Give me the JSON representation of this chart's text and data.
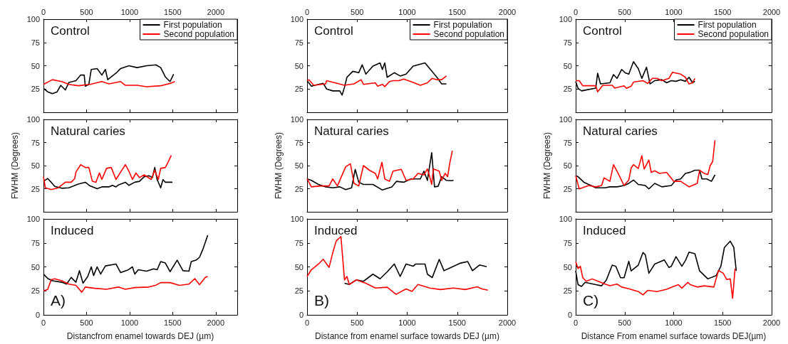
{
  "chart_data": [
    {
      "type": "line",
      "title": "Control",
      "xlim": [
        0,
        2250
      ],
      "xticks": [
        0,
        500,
        1000,
        1500,
        2000
      ],
      "ylim": [
        0,
        100
      ],
      "yticks": [
        25,
        50,
        75,
        100
      ],
      "legend": "top right",
      "series": [
        {
          "name": "First population",
          "color": "#000000",
          "x": [
            0,
            49,
            104,
            159,
            200,
            254,
            295,
            377,
            432,
            473,
            486,
            527,
            555,
            623,
            678,
            719,
            746,
            787,
            842,
            896,
            992,
            1087,
            1197,
            1306,
            1361,
            1415,
            1470,
            1511
          ],
          "values": [
            25.6,
            22,
            20,
            22,
            29,
            24,
            32,
            34,
            40,
            40,
            28,
            30,
            46,
            47,
            40,
            46,
            35,
            38,
            42,
            47,
            50,
            48,
            50,
            51,
            48,
            38,
            33,
            41
          ]
        },
        {
          "name": "Second population",
          "color": "#ff0000",
          "x": [
            0,
            104,
            213,
            295,
            404,
            541,
            678,
            760,
            896,
            951,
            1087,
            1197,
            1361,
            1470,
            1525
          ],
          "values": [
            30,
            35,
            33,
            30,
            28.5,
            30,
            33,
            30.5,
            33,
            29,
            29,
            27.5,
            28.5,
            31,
            33
          ]
        }
      ]
    },
    {
      "type": "line",
      "title": "Control",
      "xlim": [
        0,
        2000
      ],
      "xticks": [
        0,
        500,
        1000,
        1500,
        2000
      ],
      "ylim": [
        0,
        100
      ],
      "yticks": [
        25,
        50,
        75,
        100
      ],
      "legend": "top right",
      "series": [
        {
          "name": "First population",
          "color": "#000000",
          "x": [
            0,
            43,
            114,
            161,
            196,
            256,
            327,
            350,
            374,
            398,
            457,
            516,
            551,
            587,
            658,
            729,
            752,
            776,
            800,
            871,
            930,
            989,
            1060,
            1178,
            1225,
            1297,
            1344,
            1392
          ],
          "values": [
            34,
            28,
            30,
            31,
            25,
            23,
            23,
            18.5,
            27,
            37.6,
            44,
            42.5,
            51,
            41,
            49.6,
            53,
            46,
            53,
            37.6,
            42.5,
            39,
            41,
            49.6,
            53,
            47,
            37.6,
            30.5,
            30.5
          ]
        },
        {
          "name": "Second population",
          "color": "#ff0000",
          "x": [
            0,
            19,
            66,
            185,
            196,
            279,
            374,
            469,
            540,
            563,
            682,
            705,
            752,
            776,
            823,
            859,
            918,
            965,
            1037,
            1131,
            1202,
            1250,
            1297,
            1344,
            1392
          ],
          "values": [
            34,
            35,
            29,
            30.5,
            34,
            31.7,
            29,
            30.5,
            35,
            30,
            31.7,
            28,
            30,
            27.6,
            33,
            34,
            34,
            35.7,
            33,
            29,
            31.7,
            36.5,
            35,
            35,
            39
          ]
        }
      ]
    },
    {
      "type": "line",
      "title": "Control",
      "xlim": [
        0,
        2000
      ],
      "xticks": [
        0,
        500,
        1000,
        1500,
        2000
      ],
      "ylim": [
        0,
        100
      ],
      "yticks": [
        25,
        50,
        75,
        100
      ],
      "legend": "top right",
      "series": [
        {
          "name": "First population",
          "color": "#000000",
          "x": [
            0,
            24,
            60,
            133,
            205,
            224,
            253,
            349,
            386,
            422,
            470,
            506,
            542,
            590,
            639,
            675,
            723,
            759,
            807,
            880,
            928,
            976,
            1024,
            1072,
            1120,
            1157,
            1193,
            1217
          ],
          "values": [
            33,
            25.7,
            23,
            24.5,
            26,
            42,
            30.5,
            31.7,
            40.5,
            36.4,
            46,
            42.4,
            41,
            54.4,
            47,
            36.4,
            48.4,
            30.5,
            34,
            35,
            31.7,
            34,
            33.3,
            35,
            33.3,
            37.6,
            31.7,
            33.3
          ]
        },
        {
          "name": "Second population",
          "color": "#ff0000",
          "x": [
            0,
            36,
            72,
            205,
            224,
            277,
            373,
            398,
            494,
            518,
            566,
            590,
            687,
            735,
            783,
            831,
            880,
            952,
            988,
            1072,
            1120,
            1157,
            1193,
            1217
          ],
          "values": [
            34,
            34,
            28.5,
            28.5,
            22,
            29,
            29,
            26,
            28.5,
            25.7,
            28,
            32.4,
            34,
            31,
            36.4,
            36.4,
            34,
            36.4,
            43,
            41,
            37.6,
            30.5,
            31.7,
            36.4
          ]
        }
      ]
    },
    {
      "type": "line",
      "title": "Natural caries",
      "ylabel": "FWHM (Degrees)",
      "xlim": [
        0,
        2250
      ],
      "xticks": [
        0,
        500,
        1000,
        1500,
        2000
      ],
      "ylim": [
        0,
        100
      ],
      "yticks": [
        25,
        50,
        75,
        100
      ],
      "tick_labels": "y",
      "series": [
        {
          "color": "#000000",
          "x": [
            0,
            49,
            90,
            131,
            213,
            295,
            404,
            486,
            541,
            623,
            678,
            760,
            801,
            842,
            869,
            951,
            992,
            1060,
            1115,
            1169,
            1224,
            1265,
            1292,
            1320,
            1361,
            1388,
            1415,
            1497
          ],
          "values": [
            33,
            36,
            32,
            27.5,
            25.5,
            26,
            30,
            32,
            28,
            25,
            27,
            27,
            28.6,
            27,
            29,
            32,
            28.6,
            32,
            33,
            38,
            39,
            37,
            48,
            35,
            26,
            35,
            32,
            32
          ]
        },
        {
          "color": "#ff0000",
          "x": [
            0,
            22,
            90,
            172,
            254,
            322,
            363,
            377,
            432,
            486,
            527,
            568,
            609,
            650,
            678,
            732,
            787,
            842,
            896,
            951,
            992,
            1033,
            1074,
            1115,
            1169,
            1251,
            1292,
            1333,
            1361,
            1415,
            1443,
            1484
          ],
          "values": [
            38,
            26,
            24,
            26,
            32,
            32,
            36,
            43,
            51,
            48,
            48,
            33,
            32,
            42,
            35,
            47,
            48,
            35,
            43,
            51,
            44,
            35,
            42,
            37,
            40,
            35,
            45,
            35,
            47,
            48,
            53,
            61
          ]
        }
      ]
    },
    {
      "type": "line",
      "title": "Natural caries",
      "ylabel": "FWHM (Degrees)",
      "xlim": [
        0,
        2000
      ],
      "xticks": [
        0,
        500,
        1000,
        1500,
        2000
      ],
      "ylim": [
        0,
        100
      ],
      "yticks": [
        25,
        50,
        75,
        100
      ],
      "tick_labels": "y",
      "series": [
        {
          "color": "#000000",
          "x": [
            0,
            43,
            114,
            185,
            256,
            327,
            386,
            445,
            481,
            516,
            563,
            658,
            752,
            847,
            894,
            965,
            1037,
            1131,
            1167,
            1202,
            1245,
            1273,
            1309,
            1344,
            1392,
            1439,
            1463
          ],
          "values": [
            35.6,
            34,
            29.6,
            27,
            26,
            27,
            24,
            26,
            46,
            32,
            29.6,
            29.6,
            23.6,
            27,
            33,
            32,
            35.6,
            35.6,
            44,
            34,
            64,
            27,
            27.6,
            38,
            34,
            33.6,
            34
          ]
        },
        {
          "color": "#ff0000",
          "x": [
            0,
            43,
            137,
            220,
            256,
            303,
            338,
            386,
            433,
            469,
            516,
            563,
            623,
            682,
            705,
            748,
            776,
            823,
            859,
            941,
            989,
            1060,
            1108,
            1167,
            1202,
            1225,
            1245,
            1262,
            1320,
            1344,
            1380,
            1404,
            1427,
            1451
          ],
          "values": [
            35.6,
            27,
            28,
            28,
            35.6,
            28,
            36.8,
            48.8,
            52,
            30.8,
            28,
            50,
            45,
            41.6,
            35.6,
            53.6,
            35.6,
            33,
            44,
            46,
            34,
            35.6,
            41.6,
            40,
            46.4,
            38,
            29.6,
            46.4,
            44,
            34,
            41.6,
            38,
            53.6,
            66
          ]
        }
      ]
    },
    {
      "type": "line",
      "title": "Natural caries",
      "ylabel": "FWHM (Degrees)",
      "xlim": [
        0,
        2000
      ],
      "xticks": [
        0,
        500,
        1000,
        1500,
        2000
      ],
      "ylim": [
        0,
        100
      ],
      "yticks": [
        25,
        50,
        75,
        100
      ],
      "tick_labels": "y",
      "series": [
        {
          "color": "#000000",
          "x": [
            0,
            24,
            84,
            157,
            205,
            301,
            349,
            422,
            494,
            542,
            590,
            639,
            711,
            747,
            807,
            880,
            976,
            1024,
            1072,
            1120,
            1169,
            1217,
            1265,
            1289,
            1337,
            1386,
            1422
          ],
          "values": [
            39,
            38,
            32,
            28.4,
            26,
            26,
            27,
            27,
            28.4,
            30.8,
            34.4,
            29.6,
            28.4,
            24.8,
            30.8,
            27,
            28.4,
            34.4,
            35.6,
            41.6,
            42.8,
            45,
            45,
            35.6,
            35.6,
            33,
            40
          ]
        },
        {
          "color": "#ff0000",
          "x": [
            0,
            36,
            133,
            205,
            265,
            289,
            349,
            386,
            434,
            494,
            542,
            566,
            590,
            639,
            675,
            699,
            747,
            771,
            807,
            855,
            928,
            1000,
            1072,
            1157,
            1241,
            1265,
            1313,
            1349,
            1373,
            1398,
            1422
          ],
          "values": [
            39,
            24.8,
            28.4,
            27,
            28.4,
            36.8,
            33,
            51,
            41.5,
            28.4,
            34.4,
            47.5,
            51,
            46.8,
            60.7,
            46.3,
            56,
            42.7,
            44.4,
            41.5,
            42.7,
            33,
            33,
            27,
            30.8,
            45,
            41.5,
            40.3,
            50,
            54.4,
            77.5
          ]
        }
      ]
    },
    {
      "type": "line",
      "title": "Induced",
      "xlabel": "Distancfrom enamel towards DEJ (µm)",
      "annotations": [
        "A)"
      ],
      "xlim": [
        0,
        2250
      ],
      "xticks": [
        0,
        500,
        1000,
        1500,
        2000
      ],
      "ylim": [
        0,
        100
      ],
      "yticks": [
        0,
        25,
        50,
        75,
        100
      ],
      "series": [
        {
          "color": "#000000",
          "x": [
            0,
            49,
            104,
            213,
            268,
            322,
            377,
            418,
            459,
            514,
            555,
            582,
            623,
            664,
            719,
            842,
            896,
            978,
            1033,
            1060,
            1101,
            1197,
            1279,
            1320,
            1361,
            1415,
            1470,
            1552,
            1620,
            1689,
            1716,
            1771,
            1812,
            1852,
            1907
          ],
          "values": [
            42.5,
            38,
            35.5,
            34,
            32,
            39,
            34,
            46,
            33,
            40,
            50,
            41,
            50,
            42.5,
            51,
            53,
            44,
            46.6,
            50,
            42.5,
            47,
            45.6,
            48,
            47,
            55.5,
            54,
            45,
            57,
            46,
            45.6,
            55.5,
            57,
            60,
            68.6,
            83
          ]
        },
        {
          "color": "#ff0000",
          "x": [
            0,
            49,
            90,
            131,
            213,
            295,
            377,
            445,
            486,
            596,
            732,
            869,
            951,
            1060,
            1224,
            1306,
            1361,
            1470,
            1579,
            1689,
            1757,
            1812,
            1880,
            1907
          ],
          "values": [
            25,
            26.5,
            36.6,
            37.6,
            35.5,
            32,
            30.7,
            23.6,
            29,
            27.7,
            26.7,
            29,
            26.7,
            28.4,
            29,
            31,
            33.6,
            33.6,
            30.7,
            32,
            37.8,
            31.4,
            39,
            40
          ]
        }
      ]
    },
    {
      "type": "line",
      "title": "Induced",
      "xlabel": "Distance from enamel surface towards DEJ (µm)",
      "annotations": [
        "B)"
      ],
      "xlim": [
        0,
        2000
      ],
      "xticks": [
        0,
        500,
        1000,
        1500,
        2000
      ],
      "ylim": [
        0,
        100
      ],
      "yticks": [
        0,
        25,
        50,
        75,
        100
      ],
      "series": [
        {
          "color": "#000000",
          "x": [
            374,
            421,
            492,
            563,
            658,
            729,
            800,
            871,
            930,
            989,
            1060,
            1084,
            1178,
            1202,
            1250,
            1320,
            1368,
            1439,
            1534,
            1605,
            1652,
            1723,
            1794
          ],
          "values": [
            32.9,
            31.7,
            36.4,
            35,
            42.4,
            37.6,
            44.8,
            53,
            40,
            53,
            50.7,
            53,
            53,
            42.4,
            38.8,
            57.8,
            46,
            49.5,
            54,
            55.5,
            46,
            52,
            50.2
          ]
        },
        {
          "color": "#ff0000",
          "x": [
            0,
            43,
            114,
            161,
            220,
            256,
            291,
            338,
            374,
            398,
            421,
            492,
            587,
            682,
            800,
            889,
            989,
            1048,
            1108,
            1225,
            1332,
            1463,
            1581,
            1699,
            1747,
            1806
          ],
          "values": [
            40,
            47,
            53,
            58,
            49.5,
            64.5,
            77,
            81.7,
            36.4,
            40,
            31.7,
            36.4,
            32.9,
            28,
            28.8,
            21.4,
            27,
            24.5,
            31.7,
            28,
            26.4,
            28,
            26.4,
            29.3,
            27,
            25.7
          ]
        }
      ]
    },
    {
      "type": "line",
      "title": "Induced",
      "xlabel": "Distance From enamel surface towards DEJ(µm)",
      "annotations": [
        "C)"
      ],
      "xlim": [
        0,
        2000
      ],
      "xticks": [
        0,
        500,
        1000,
        1500,
        2000
      ],
      "ylim": [
        0,
        100
      ],
      "yticks": [
        0,
        25,
        50,
        75,
        100
      ],
      "series": [
        {
          "color": "#000000",
          "x": [
            0,
            24,
            60,
            96,
            205,
            265,
            313,
            373,
            410,
            458,
            494,
            542,
            566,
            639,
            687,
            711,
            747,
            807,
            904,
            952,
            976,
            1024,
            1084,
            1120,
            1157,
            1217,
            1265,
            1349,
            1434,
            1482,
            1518,
            1578,
            1614,
            1639
          ],
          "values": [
            45.8,
            31.5,
            29.6,
            33.9,
            31.5,
            30.3,
            36.3,
            51.8,
            50.6,
            38.7,
            38.7,
            55.8,
            45.8,
            51.8,
            65,
            62.5,
            43.4,
            53,
            57.3,
            49.4,
            50.6,
            60.6,
            50.6,
            56.6,
            65.4,
            63.7,
            45.8,
            37.5,
            41,
            50.6,
            70.2,
            76.8,
            70.2,
            45.8
          ]
        },
        {
          "color": "#ff0000",
          "x": [
            0,
            24,
            48,
            72,
            108,
            169,
            229,
            301,
            349,
            422,
            470,
            542,
            639,
            687,
            735,
            831,
            928,
            1000,
            1048,
            1084,
            1145,
            1169,
            1241,
            1313,
            1410,
            1458,
            1506,
            1542,
            1578,
            1602,
            1627
          ],
          "values": [
            55.4,
            48.2,
            50.6,
            38.7,
            35,
            37.5,
            35,
            32,
            30.3,
            32,
            29,
            27.2,
            24.3,
            20.8,
            25.5,
            24.3,
            26.7,
            29.6,
            31.5,
            27.9,
            33.9,
            31.5,
            29,
            30.3,
            29,
            46.3,
            43.4,
            36.8,
            37.5,
            17.2,
            48.2
          ]
        }
      ]
    }
  ]
}
